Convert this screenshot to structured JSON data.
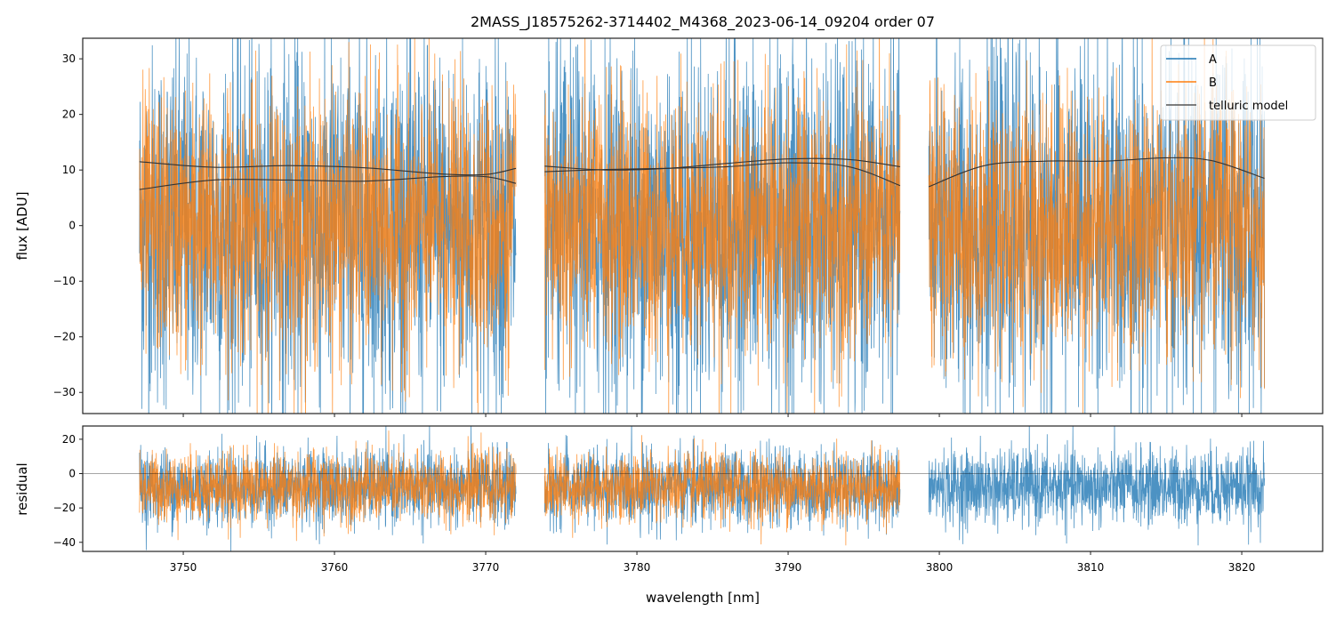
{
  "chart_data": {
    "type": "line",
    "title": "2MASS_J18575262-3714402_M4368_2023-06-14_09204  order 07",
    "xlabel": "wavelength [nm]",
    "colors": {
      "A": "#1f77b4",
      "B": "#ff7f0e",
      "telluric": "#333333"
    },
    "legend": {
      "placement": "top-right",
      "entries": [
        "A",
        "B",
        "telluric model"
      ]
    },
    "xlim": [
      3743.35,
      3825.35
    ],
    "xticks": [
      3750,
      3760,
      3770,
      3780,
      3790,
      3800,
      3810,
      3820
    ],
    "top": {
      "ylabel": "flux [ADU]",
      "ylim": [
        -33.8,
        33.7
      ],
      "yticks": [
        -30,
        -20,
        -10,
        0,
        10,
        20,
        30
      ],
      "segments": [
        [
          3747.1,
          3772.0
        ],
        [
          3773.9,
          3797.4
        ],
        [
          3799.3,
          3821.5
        ]
      ],
      "noise_sigma": {
        "A": 16,
        "B": 12
      },
      "telluric_models": [
        {
          "x": [
            3747.1,
            3752,
            3757,
            3762,
            3767,
            3770,
            3772.0
          ],
          "y": [
            11.5,
            10.5,
            10.8,
            10.4,
            9.3,
            9.2,
            10.3
          ]
        },
        {
          "x": [
            3747.1,
            3752,
            3757,
            3762,
            3767,
            3770,
            3772.0
          ],
          "y": [
            6.5,
            8.2,
            8.2,
            8.0,
            8.8,
            8.8,
            7.6
          ]
        },
        {
          "x": [
            3773.9,
            3778,
            3782,
            3786,
            3790,
            3794,
            3797.4
          ],
          "y": [
            10.7,
            10.0,
            10.3,
            11.2,
            12.0,
            11.9,
            10.6
          ]
        },
        {
          "x": [
            3773.9,
            3778,
            3782,
            3786,
            3790,
            3794,
            3797.4
          ],
          "y": [
            9.7,
            10.1,
            10.3,
            10.6,
            11.3,
            10.6,
            7.2
          ]
        },
        {
          "x": [
            3799.3,
            3803,
            3807,
            3811,
            3815,
            3818,
            3821.5
          ],
          "y": [
            7.0,
            10.8,
            11.6,
            11.6,
            12.2,
            11.7,
            8.5
          ]
        }
      ]
    },
    "bottom": {
      "ylabel": "residual",
      "ylim": [
        -45.3,
        27.7
      ],
      "yticks": [
        -40,
        -20,
        0,
        20
      ],
      "residual_mean": -8,
      "noise_sigma": {
        "A": 11,
        "B": 10
      },
      "B_segments": [
        0,
        1
      ]
    }
  }
}
